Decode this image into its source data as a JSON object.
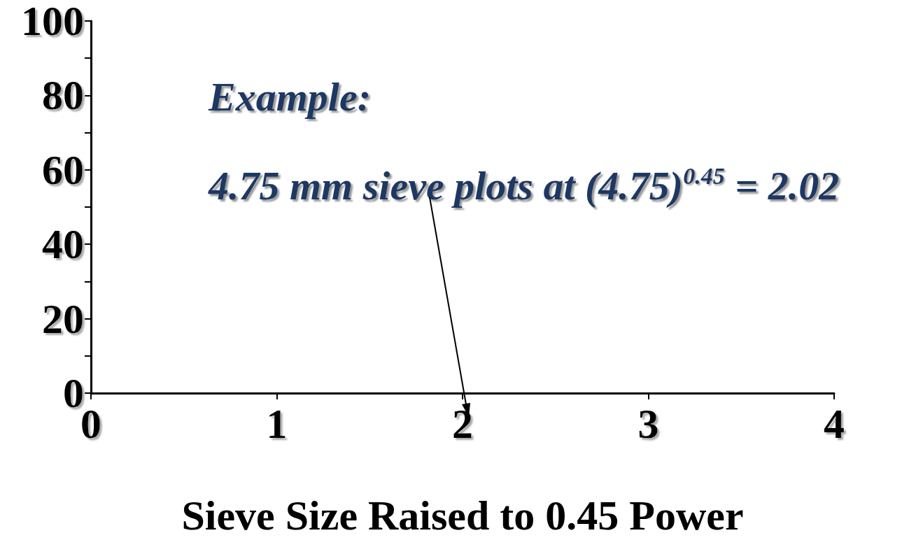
{
  "chart_data": {
    "type": "line",
    "xlabel": "Sieve Size Raised to 0.45 Power",
    "xlim": [
      0,
      4
    ],
    "xticks": [
      0,
      1,
      2,
      3,
      4
    ],
    "ylim": [
      0,
      100
    ],
    "yticks": [
      0,
      {
        "value": 10,
        "label": null
      },
      20,
      {
        "value": 30,
        "label": null
      },
      40,
      {
        "value": 50,
        "label": null
      },
      60,
      {
        "value": 70,
        "label": null
      },
      80,
      {
        "value": 90,
        "label": null
      },
      100
    ],
    "grid": false,
    "annotations": [
      "Example:",
      "4.75 mm sieve plots at (4.75)$^{0.45}$ = 2.02"
    ]
  }
}
